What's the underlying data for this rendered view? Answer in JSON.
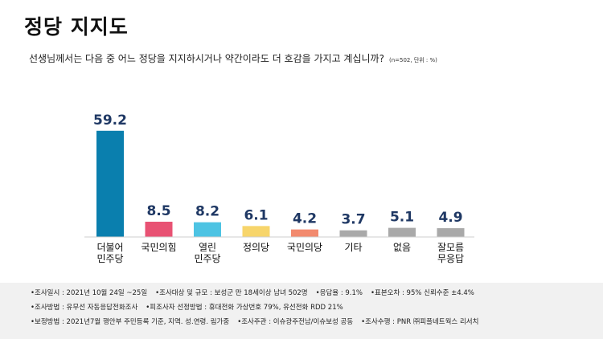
{
  "title": "정당 지지도",
  "question": "선생님께서는 다음 중 어느 정당을 지지하시거나 약간이라도 더 호감을 가지고 계십니까?",
  "question_note": "(n=502, 단위 : %)",
  "chart_data": {
    "type": "bar",
    "categories": [
      [
        "더불어",
        "민주당"
      ],
      [
        "국민의힘"
      ],
      [
        "열린",
        "민주당"
      ],
      [
        "정의당"
      ],
      [
        "국민의당"
      ],
      [
        "기타"
      ],
      [
        "없음"
      ],
      [
        "잘모름",
        "무응답"
      ]
    ],
    "values": [
      59.2,
      8.5,
      8.2,
      6.1,
      4.2,
      3.7,
      5.1,
      4.9
    ],
    "value_labels": [
      "59.2",
      "8.5",
      "8.2",
      "6.1",
      "4.2",
      "3.7",
      "5.1",
      "4.9"
    ],
    "colors": [
      "#0a7fae",
      "#e85273",
      "#4dc3e3",
      "#f7d56b",
      "#f28a6e",
      "#a9a9a9",
      "#a9a9a9",
      "#a9a9a9"
    ],
    "value_label_color": "#1f3864",
    "ylim": [
      0,
      60
    ]
  },
  "footer": {
    "lines": [
      [
        "•조사일시 : 2021년 10월 24일 ~25일",
        "•조사대상 및 규모 : 보성군 만 18세이상 남녀 502명",
        "•응답율 : 9.1%",
        "•표본오차 : 95% 신뢰수준 ±4.4%"
      ],
      [
        "•조사방법 : 유무선 자동응답전화조사",
        "•피조사자 선정방법 : 휴대전화 가상번호 79%, 유선전화 RDD 21%"
      ],
      [
        "•보정방법 : 2021년7월 행안부 주민등록 기준, 지역. 성.연령. 림가중",
        "•조사주관 : 이슈광주전남/이슈보성 공동",
        "•조사수행 : PNR ㈜피플네트웍스 리서치"
      ]
    ]
  }
}
